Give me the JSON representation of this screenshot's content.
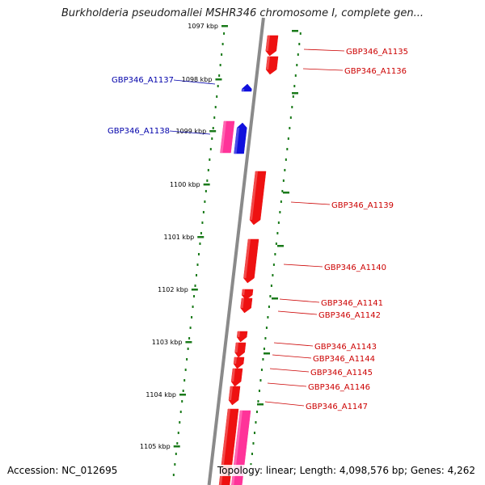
{
  "header": {
    "title": "Burkholderia pseudomallei MSHR346 chromosome I, complete gen..."
  },
  "footer": {
    "accession": "Accession: NC_012695",
    "topology": "Topology: linear; Length: 4,098,576 bp; Genes: 4,262"
  },
  "colors": {
    "backbone": "#8a8a8a",
    "tick": "#1a7a1a",
    "forward_gene": "#ee1111",
    "reverse_gene": "#1010dd",
    "pseudo_gene": "#ff3399",
    "forward_label": "#cc0000",
    "reverse_label": "#0000aa"
  },
  "scale": {
    "ticks": [
      {
        "label": "1097 kbp"
      },
      {
        "label": "1098 kbp"
      },
      {
        "label": "1099 kbp"
      },
      {
        "label": "1100 kbp"
      },
      {
        "label": "1101 kbp"
      },
      {
        "label": "1102 kbp"
      },
      {
        "label": "1103 kbp"
      },
      {
        "label": "1104 kbp"
      },
      {
        "label": "1105 kbp"
      }
    ]
  },
  "genes": {
    "reverse": [
      {
        "name": "GBP346_A1137"
      },
      {
        "name": "GBP346_A1138"
      }
    ],
    "forward": [
      {
        "name": "GBP346_A1135"
      },
      {
        "name": "GBP346_A1136"
      },
      {
        "name": "GBP346_A1139"
      },
      {
        "name": "GBP346_A1140"
      },
      {
        "name": "GBP346_A1141"
      },
      {
        "name": "GBP346_A1142"
      },
      {
        "name": "GBP346_A1143"
      },
      {
        "name": "GBP346_A1144"
      },
      {
        "name": "GBP346_A1145"
      },
      {
        "name": "GBP346_A1146"
      },
      {
        "name": "GBP346_A1147"
      }
    ]
  }
}
